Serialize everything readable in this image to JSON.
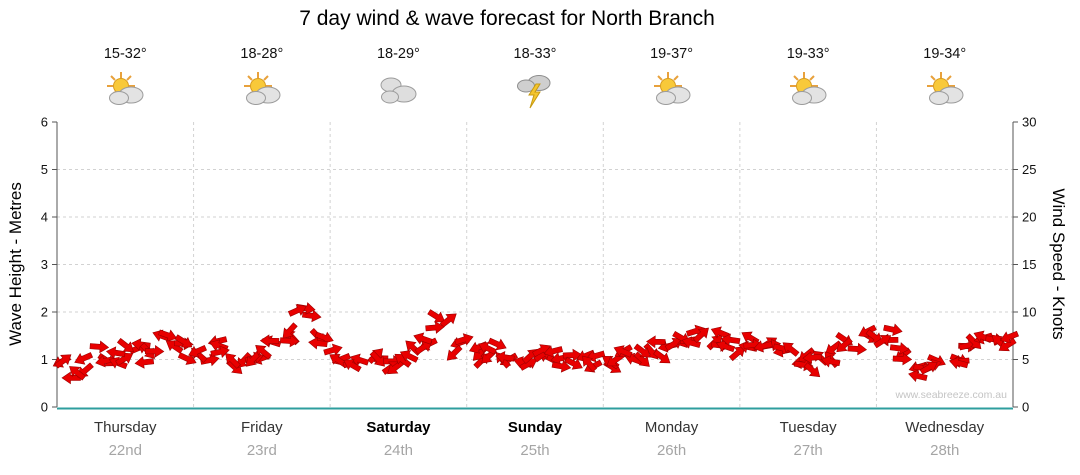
{
  "title": "7 day wind & wave forecast for North Branch",
  "watermark": "www.seabreeze.com.au",
  "colors": {
    "arrow_red": "#e80000",
    "arrow_dark": "#9e0000",
    "axis_teal": "#2e9e9e",
    "grid": "#d2d2d2",
    "axis_line": "#555555"
  },
  "axes": {
    "left_label": "Wave Height - Metres",
    "right_label": "Wind Speed - Knots",
    "left_ticks": [
      0,
      1,
      2,
      3,
      4,
      5,
      6
    ],
    "right_ticks": [
      0,
      5,
      10,
      15,
      20,
      25,
      30
    ]
  },
  "days": [
    {
      "name": "Thursday",
      "date": "22nd",
      "temp": "15-32°",
      "icon": "partly-cloudy",
      "bold": false
    },
    {
      "name": "Friday",
      "date": "23rd",
      "temp": "18-28°",
      "icon": "partly-cloudy",
      "bold": false
    },
    {
      "name": "Saturday",
      "date": "24th",
      "temp": "18-29°",
      "icon": "cloudy",
      "bold": true
    },
    {
      "name": "Sunday",
      "date": "25th",
      "temp": "18-33°",
      "icon": "thunderstorm",
      "bold": true
    },
    {
      "name": "Monday",
      "date": "26th",
      "temp": "19-37°",
      "icon": "partly-cloudy",
      "bold": false
    },
    {
      "name": "Tuesday",
      "date": "27th",
      "temp": "19-33°",
      "icon": "partly-cloudy",
      "bold": false
    },
    {
      "name": "Wednesday",
      "date": "28th",
      "temp": "19-34°",
      "icon": "partly-cloudy",
      "bold": false
    }
  ],
  "chart_data": {
    "type": "line",
    "title": "7 day wind & wave forecast for North Branch",
    "xlabel": "",
    "ylabel_left": "Wave Height - Metres",
    "ylabel_right": "Wind Speed - Knots",
    "ylim_left": [
      0,
      6
    ],
    "ylim_right": [
      0,
      30
    ],
    "grid": true,
    "legend": false,
    "x_categories": [
      "Thursday 22nd",
      "Friday 23rd",
      "Saturday 24th",
      "Sunday 25th",
      "Monday 26th",
      "Tuesday 27th",
      "Wednesday 28th"
    ],
    "points_per_day": 8,
    "series": [
      {
        "name": "Wind Speed",
        "unit": "knots",
        "color": "#e80000",
        "style": "wind-arrows",
        "values": [
          4,
          4.5,
          5.5,
          5,
          6,
          5.5,
          7,
          6,
          5.5,
          6,
          5,
          5.5,
          6.5,
          7.5,
          9.5,
          7.5,
          5.5,
          5,
          4.5,
          5,
          5.5,
          6.5,
          9,
          6.5,
          5.5,
          6,
          5,
          5.5,
          6,
          5,
          5.5,
          5,
          4.5,
          5,
          5.5,
          6,
          6.5,
          7.5,
          7,
          6.5,
          7,
          6.5,
          5.5,
          4.5,
          4.5,
          5.5,
          7,
          8,
          7.5,
          5.5,
          4,
          4,
          5,
          6.5,
          7.5,
          6.5
        ]
      }
    ]
  }
}
